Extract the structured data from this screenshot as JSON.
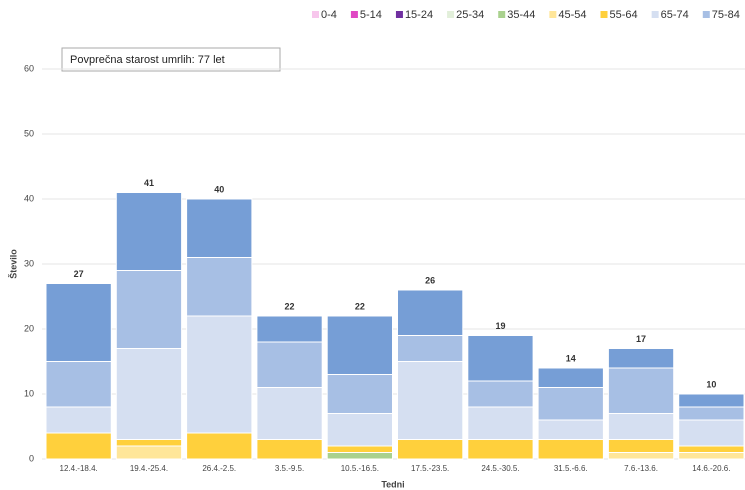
{
  "chart_data": {
    "type": "stacked_bar",
    "annotation": "Povprečna starost umrlih: 77 let",
    "x_label": "Tedni",
    "y_label": "Število",
    "categories": [
      "12.4.-18.4.",
      "19.4.-25.4.",
      "26.4.-2.5.",
      "3.5.-9.5.",
      "10.5.-16.5.",
      "17.5.-23.5.",
      "24.5.-30.5.",
      "31.5.-6.6.",
      "7.6.-13.6.",
      "14.6.-20.6."
    ],
    "series": [
      {
        "name": "0-4",
        "color": "#f7c6ec",
        "values": [
          0,
          0,
          0,
          0,
          0,
          0,
          0,
          0,
          0,
          0
        ]
      },
      {
        "name": "5-14",
        "color": "#e048c4",
        "values": [
          0,
          0,
          0,
          0,
          0,
          0,
          0,
          0,
          0,
          0
        ]
      },
      {
        "name": "15-24",
        "color": "#7030a0",
        "values": [
          0,
          0,
          0,
          0,
          0,
          0,
          0,
          0,
          0,
          0
        ]
      },
      {
        "name": "25-34",
        "color": "#e2efda",
        "values": [
          0,
          0,
          0,
          0,
          0,
          0,
          0,
          0,
          0,
          0
        ]
      },
      {
        "name": "35-44",
        "color": "#a9d18e",
        "values": [
          0,
          0,
          0,
          0,
          1,
          0,
          0,
          0,
          0,
          0
        ]
      },
      {
        "name": "45-54",
        "color": "#ffe699",
        "values": [
          0,
          2,
          0,
          0,
          0,
          0,
          0,
          0,
          1,
          1
        ]
      },
      {
        "name": "55-64",
        "color": "#ffd03c",
        "values": [
          4,
          1,
          4,
          3,
          1,
          3,
          3,
          3,
          2,
          1
        ]
      },
      {
        "name": "65-74",
        "color": "#d5dff1",
        "values": [
          4,
          14,
          18,
          8,
          5,
          12,
          5,
          3,
          4,
          4
        ]
      },
      {
        "name": "75-84",
        "color": "#a7bfe4",
        "values": [
          7,
          12,
          9,
          7,
          6,
          4,
          4,
          5,
          7,
          2
        ]
      },
      {
        "name": "85+",
        "color": "#769ed6",
        "values": [
          12,
          12,
          9,
          4,
          9,
          7,
          7,
          3,
          3,
          2
        ]
      }
    ],
    "totals": [
      27,
      41,
      40,
      22,
      22,
      26,
      19,
      14,
      17,
      10
    ],
    "ylim": [
      0,
      60
    ],
    "yticks": [
      0,
      10,
      20,
      30,
      40,
      50,
      60
    ],
    "grid": true
  }
}
